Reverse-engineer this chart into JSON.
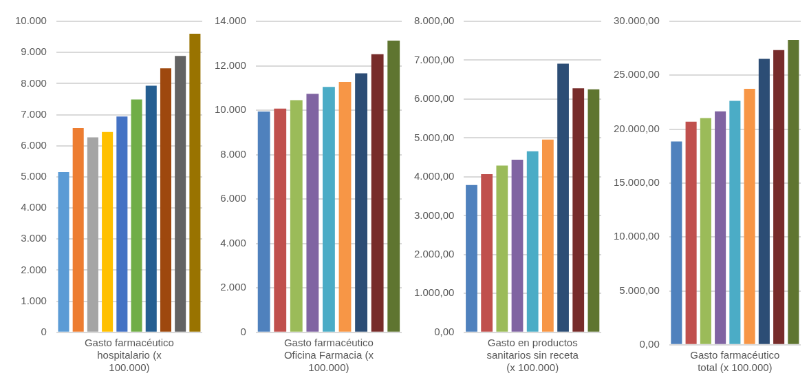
{
  "chart_data": [
    {
      "type": "bar",
      "xlabel": "Gasto farmacéutico hospitalario (x 100.000)",
      "categories": [
        null,
        null,
        null,
        null,
        null,
        null,
        null,
        null,
        null,
        null
      ],
      "values": [
        5150,
        6570,
        6270,
        6440,
        6940,
        7490,
        7930,
        8490,
        8890,
        9600
      ],
      "colors": [
        "#5b9bd5",
        "#ed7d31",
        "#a5a5a5",
        "#ffc000",
        "#4472c4",
        "#70ad47",
        "#255e91",
        "#9e480e",
        "#636363",
        "#997300"
      ],
      "ylim": [
        0,
        10000
      ],
      "yticks": [
        0,
        {
          "value": 1000,
          "label": "1.000"
        },
        {
          "value": 2000,
          "label": "2.000"
        },
        {
          "value": 3000,
          "label": "3.000"
        },
        {
          "value": 4000,
          "label": "4.000"
        },
        {
          "value": 5000,
          "label": "5.000"
        },
        {
          "value": 6000,
          "label": "6.000"
        },
        {
          "value": 7000,
          "label": "7.000"
        },
        {
          "value": 8000,
          "label": "8.000"
        },
        {
          "value": 9000,
          "label": "9.000"
        },
        {
          "value": 10000,
          "label": "10.000"
        }
      ],
      "grid": "y",
      "legend": false
    },
    {
      "type": "bar",
      "xlabel": "Gasto farmacéutico Oficina Farmacia (x 100.000)",
      "categories": [
        null,
        null,
        null,
        null,
        null,
        null,
        null,
        null,
        null
      ],
      "values": [
        9940,
        10070,
        10450,
        10740,
        11050,
        11270,
        11660,
        12520,
        13130
      ],
      "colors": [
        "#4f81bd",
        "#c0504d",
        "#9bbb59",
        "#8064a2",
        "#4bacc6",
        "#f79646",
        "#2c4d75",
        "#772c2a",
        "#5f7530"
      ],
      "ylim": [
        0,
        14000
      ],
      "yticks": [
        0,
        {
          "value": 2000,
          "label": "2.000"
        },
        {
          "value": 4000,
          "label": "4.000"
        },
        {
          "value": 6000,
          "label": "6.000"
        },
        {
          "value": 8000,
          "label": "8.000"
        },
        {
          "value": 10000,
          "label": "10.000"
        },
        {
          "value": 12000,
          "label": "12.000"
        },
        {
          "value": 14000,
          "label": "14.000"
        }
      ],
      "grid": "y",
      "legend": false
    },
    {
      "type": "bar",
      "xlabel": "Gasto en productos sanitarios sin receta (x 100.000)",
      "categories": [
        null,
        null,
        null,
        null,
        null,
        null,
        null,
        null,
        null
      ],
      "values": [
        3790,
        4070,
        4290,
        4440,
        4660,
        4960,
        6910,
        6280,
        6250
      ],
      "colors": [
        "#4f81bd",
        "#c0504d",
        "#9bbb59",
        "#8064a2",
        "#4bacc6",
        "#f79646",
        "#2c4d75",
        "#772c2a",
        "#5f7530"
      ],
      "ylim": [
        0,
        8000
      ],
      "yticks": [
        {
          "value": 0,
          "label": "0,00"
        },
        {
          "value": 1000,
          "label": "1.000,00"
        },
        {
          "value": 2000,
          "label": "2.000,00"
        },
        {
          "value": 3000,
          "label": "3.000,00"
        },
        {
          "value": 4000,
          "label": "4.000,00"
        },
        {
          "value": 5000,
          "label": "5.000,00"
        },
        {
          "value": 6000,
          "label": "6.000,00"
        },
        {
          "value": 7000,
          "label": "7.000,00"
        },
        {
          "value": 8000,
          "label": "8.000,00"
        }
      ],
      "grid": "y",
      "legend": false
    },
    {
      "type": "bar",
      "xlabel": "Gasto farmacéutico total (x 100.000)",
      "categories": [
        null,
        null,
        null,
        null,
        null,
        null,
        null,
        null,
        null
      ],
      "values": [
        18860,
        20700,
        21030,
        21650,
        22630,
        23750,
        26520,
        27330,
        28280
      ],
      "colors": [
        "#4f81bd",
        "#c0504d",
        "#9bbb59",
        "#8064a2",
        "#4bacc6",
        "#f79646",
        "#2c4d75",
        "#772c2a",
        "#5f7530"
      ],
      "ylim": [
        0,
        30000
      ],
      "yticks": [
        {
          "value": 0,
          "label": "0,00"
        },
        {
          "value": 5000,
          "label": "5.000,00"
        },
        {
          "value": 10000,
          "label": "10.000,00"
        },
        {
          "value": 15000,
          "label": "15.000,00"
        },
        {
          "value": 20000,
          "label": "20.000,00"
        },
        {
          "value": 25000,
          "label": "25.000,00"
        },
        {
          "value": 30000,
          "label": "30.000,00"
        }
      ],
      "grid": "y",
      "legend": false
    }
  ]
}
